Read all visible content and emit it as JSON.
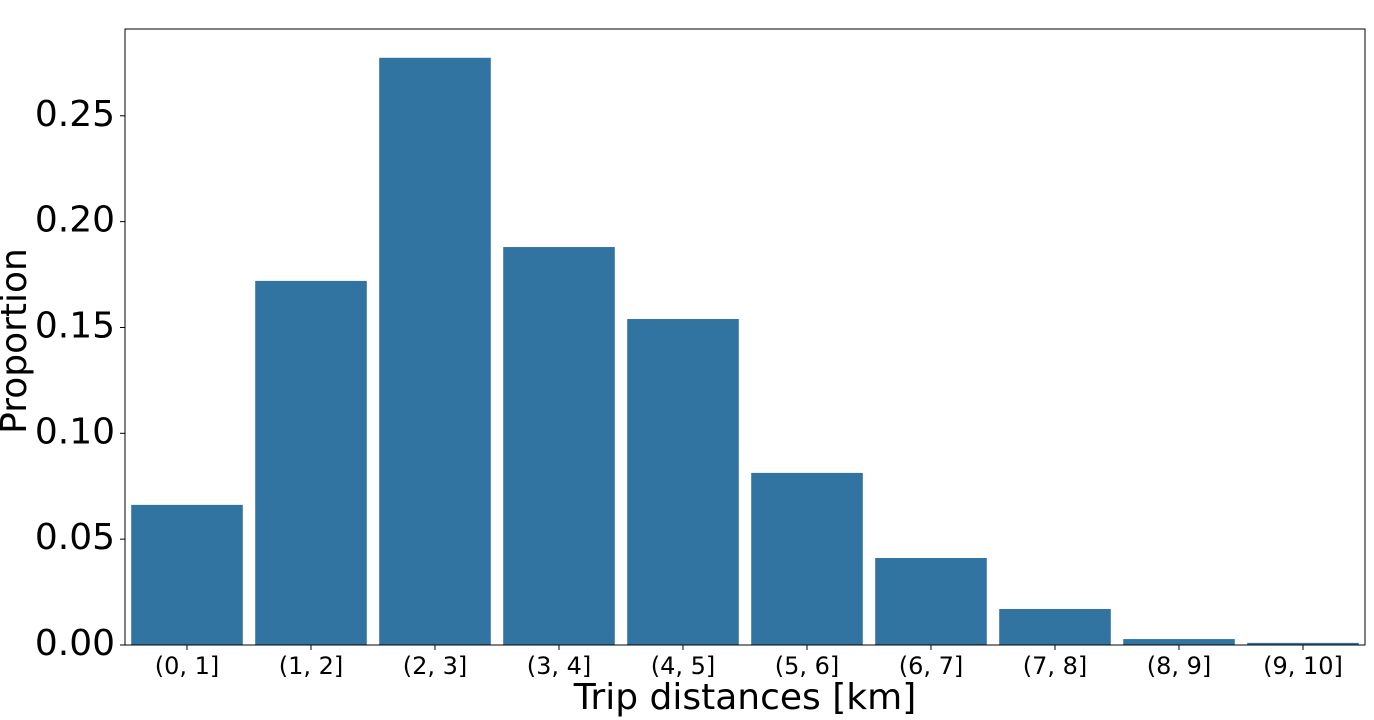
{
  "chart_data": {
    "type": "bar",
    "categories": [
      "(0, 1]",
      "(1, 2]",
      "(2, 3]",
      "(3, 4]",
      "(4, 5]",
      "(5, 6]",
      "(6, 7]",
      "(7, 8]",
      "(8, 9]",
      "(9, 10]"
    ],
    "values": [
      0.0662,
      0.172,
      0.2774,
      0.188,
      0.154,
      0.0813,
      0.0411,
      0.017,
      0.0028,
      0.001
    ],
    "color": "#3274a1",
    "xlabel": "Trip distances [km]",
    "ylabel": "Proportion",
    "ylim": [
      0,
      0.291
    ],
    "yticks": [
      {
        "value": 0,
        "label": "0.00"
      },
      {
        "value": 0.05,
        "label": "0.05"
      },
      {
        "value": 0.1,
        "label": "0.10"
      },
      {
        "value": 0.15,
        "label": "0.15"
      },
      {
        "value": 0.2,
        "label": "0.20"
      },
      {
        "value": 0.25,
        "label": "0.25"
      }
    ],
    "grid": false
  }
}
